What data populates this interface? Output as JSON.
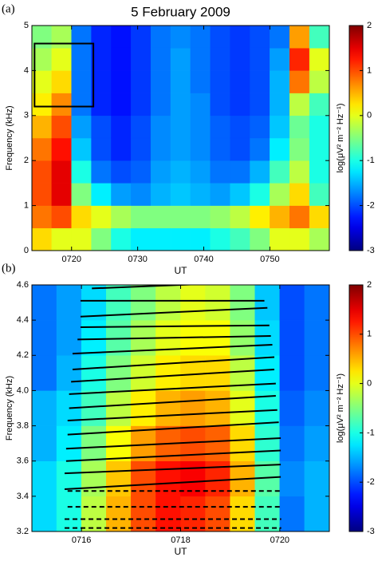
{
  "chart_data": [
    {
      "type": "heatmap",
      "title": "5 February 2009",
      "panel_label": "(a)",
      "xlabel": "UT",
      "ylabel": "Frequency (kHz)",
      "xlim": [
        14,
        59
      ],
      "ylim": [
        0,
        5
      ],
      "xticks": [
        {
          "value": 20,
          "label": "0720"
        },
        {
          "value": 30,
          "label": "0730"
        },
        {
          "value": 40,
          "label": "0740"
        },
        {
          "value": 50,
          "label": "0750"
        }
      ],
      "yticks": [
        0,
        1,
        2,
        3,
        4,
        5
      ],
      "xbins": [
        14,
        17,
        20,
        23,
        26,
        29,
        32,
        35,
        38,
        41,
        44,
        47,
        50,
        53,
        56,
        59
      ],
      "ybins": [
        0,
        0.5,
        1,
        1.5,
        2,
        2.5,
        3,
        3.5,
        4,
        4.5,
        5
      ],
      "z": [
        [
          0.3,
          0.8,
          1,
          1,
          0.8,
          0.5,
          0.2,
          0,
          -0.3,
          -0.5
        ],
        [
          0,
          1,
          1.5,
          1.5,
          1.3,
          1,
          0.7,
          0.3,
          0,
          -0.3
        ],
        [
          0,
          0.3,
          -0.5,
          -1,
          -1.4,
          -1.6,
          -1.8,
          -1.8,
          -1.8,
          -1.8
        ],
        [
          -0.5,
          0,
          -1.2,
          -1.8,
          -2,
          -2,
          -2.2,
          -2.2,
          -2.2,
          -2.2
        ],
        [
          -1,
          -0.3,
          -1.6,
          -2,
          -2.2,
          -2.2,
          -2.3,
          -2.3,
          -2.3,
          -2.3
        ],
        [
          -1.2,
          -0.5,
          -1.7,
          -1.9,
          -2,
          -2,
          -2.1,
          -2.1,
          -2.1,
          -2.1
        ],
        [
          -1.2,
          -0.5,
          -1.5,
          -1.6,
          -1.7,
          -1.7,
          -1.8,
          -1.8,
          -1.8,
          -1.8
        ],
        [
          -1.2,
          -0.5,
          -1.4,
          -1.5,
          -1.6,
          -1.6,
          -1.6,
          -1.6,
          -1.6,
          -1.7
        ],
        [
          -1.2,
          -0.5,
          -1.5,
          -1.6,
          -1.7,
          -1.7,
          -1.7,
          -1.8,
          -1.8,
          -1.8
        ],
        [
          -1,
          -0.4,
          -1.6,
          -1.8,
          -1.9,
          -1.9,
          -2,
          -2,
          -2,
          -2
        ],
        [
          -0.8,
          -0.2,
          -1.4,
          -1.8,
          -2,
          -2,
          -2.1,
          -2.1,
          -2.1,
          -2.1
        ],
        [
          -0.5,
          0.2,
          -1,
          -1.5,
          -1.8,
          -1.9,
          -2,
          -2,
          -2,
          -2
        ],
        [
          0,
          0.5,
          -0.3,
          -0.8,
          -1.2,
          -1.4,
          -1.5,
          -1.5,
          -1.6,
          -1.8
        ],
        [
          0,
          0.8,
          0.3,
          -0.2,
          -0.5,
          -0.6,
          -0.2,
          0.8,
          1.2,
          0.6
        ],
        [
          -0.3,
          0.3,
          -0.8,
          -1,
          -1,
          -1,
          -0.8,
          -0.2,
          0,
          -0.8
        ]
      ],
      "box": {
        "x": [
          14.4,
          23.3
        ],
        "y": [
          3.2,
          4.6
        ]
      },
      "colorbar": {
        "lim": [
          -3,
          2
        ],
        "ticks": [
          -3,
          -2,
          -1,
          0,
          1,
          2
        ],
        "label": "log(μV² m⁻² Hz⁻¹)"
      }
    },
    {
      "type": "heatmap",
      "panel_label": "(b)",
      "xlabel": "UT",
      "ylabel": "Frequency (kHz)",
      "xlim": [
        15,
        21
      ],
      "ylim": [
        3.2,
        4.6
      ],
      "xticks": [
        {
          "value": 16,
          "label": "0716"
        },
        {
          "value": 18,
          "label": "0718"
        },
        {
          "value": 20,
          "label": "0720"
        }
      ],
      "yticks": [
        3.2,
        3.4,
        3.6,
        3.8,
        {
          "value": 4,
          "label": "4.0"
        },
        4.2,
        4.4,
        4.6
      ],
      "xbins": [
        15,
        15.5,
        16,
        16.5,
        17,
        17.5,
        18,
        18.5,
        19,
        19.5,
        20,
        20.5,
        21
      ],
      "ybins": [
        3.2,
        3.4,
        3.6,
        3.8,
        4,
        4.2,
        4.4,
        4.6
      ],
      "z": [
        [
          -1.3,
          -1.3,
          -1.5,
          -1.5,
          -1.8,
          -1.8,
          -1.8
        ],
        [
          -1,
          -1,
          -1.2,
          -1.3,
          -1.5,
          -1.6,
          -1.6
        ],
        [
          -0.2,
          -0.3,
          -0.5,
          -0.8,
          -1,
          -1.2,
          -1.3
        ],
        [
          0.5,
          0.4,
          0.1,
          -0.2,
          -0.5,
          -0.7,
          -0.8
        ],
        [
          1,
          1,
          0.6,
          0.2,
          -0.1,
          -0.3,
          -0.5
        ],
        [
          1.3,
          1.3,
          0.9,
          0.5,
          0.2,
          0,
          -0.2
        ],
        [
          1.2,
          1.4,
          1,
          0.6,
          0.3,
          0.1,
          0
        ],
        [
          1,
          1.2,
          0.9,
          0.5,
          0.3,
          0.1,
          -0.1
        ],
        [
          0.3,
          0.5,
          0.3,
          0,
          -0.2,
          -0.4,
          -0.5
        ],
        [
          -0.8,
          -0.7,
          -0.9,
          -1,
          -1.2,
          -1.3,
          -1.4
        ],
        [
          -1.8,
          -1.7,
          -1.8,
          -1.9,
          -2,
          -2,
          -2
        ],
        [
          -1.5,
          -1.5,
          -1.6,
          -1.7,
          -1.8,
          -1.8,
          -1.8
        ]
      ],
      "solid_lines": [
        {
          "x": [
            16.21,
            18.9
          ],
          "y": [
            4.58,
            4.61
          ]
        },
        {
          "x": [
            15.98,
            19.69
          ],
          "y": [
            4.51,
            4.51
          ]
        },
        {
          "x": [
            15.98,
            19.75
          ],
          "y": [
            4.42,
            4.47
          ]
        },
        {
          "x": [
            15.98,
            19.79
          ],
          "y": [
            4.36,
            4.37
          ]
        },
        {
          "x": [
            15.92,
            19.82
          ],
          "y": [
            4.29,
            4.31
          ]
        },
        {
          "x": [
            15.82,
            19.85
          ],
          "y": [
            4.21,
            4.26
          ]
        },
        {
          "x": [
            15.82,
            19.89
          ],
          "y": [
            4.12,
            4.19
          ]
        },
        {
          "x": [
            15.79,
            19.89
          ],
          "y": [
            4.05,
            4.12
          ]
        },
        {
          "x": [
            15.75,
            19.92
          ],
          "y": [
            3.98,
            4.04
          ]
        },
        {
          "x": [
            15.75,
            19.92
          ],
          "y": [
            3.9,
            3.97
          ]
        },
        {
          "x": [
            15.72,
            19.95
          ],
          "y": [
            3.83,
            3.89
          ]
        },
        {
          "x": [
            15.72,
            19.98
          ],
          "y": [
            3.75,
            3.82
          ]
        },
        {
          "x": [
            15.69,
            20.02
          ],
          "y": [
            3.67,
            3.73
          ]
        },
        {
          "x": [
            15.69,
            20.02
          ],
          "y": [
            3.6,
            3.66
          ]
        },
        {
          "x": [
            15.66,
            20.02
          ],
          "y": [
            3.53,
            3.58
          ]
        },
        {
          "x": [
            15.66,
            20.02
          ],
          "y": [
            3.44,
            3.51
          ]
        }
      ],
      "dashed_lines": [
        {
          "x": [
            15.72,
            20.0
          ],
          "y": [
            3.43,
            3.43
          ]
        },
        {
          "x": [
            15.72,
            20.0
          ],
          "y": [
            3.34,
            3.34
          ]
        },
        {
          "x": [
            15.66,
            20.03
          ],
          "y": [
            3.27,
            3.27
          ]
        },
        {
          "x": [
            15.66,
            20.03
          ],
          "y": [
            3.22,
            3.22
          ]
        }
      ],
      "colorbar": {
        "lim": [
          -3,
          2
        ],
        "ticks": [
          -3,
          -2,
          -1,
          0,
          1,
          2
        ],
        "label": "log(μV² m⁻² Hz⁻¹)"
      }
    }
  ]
}
